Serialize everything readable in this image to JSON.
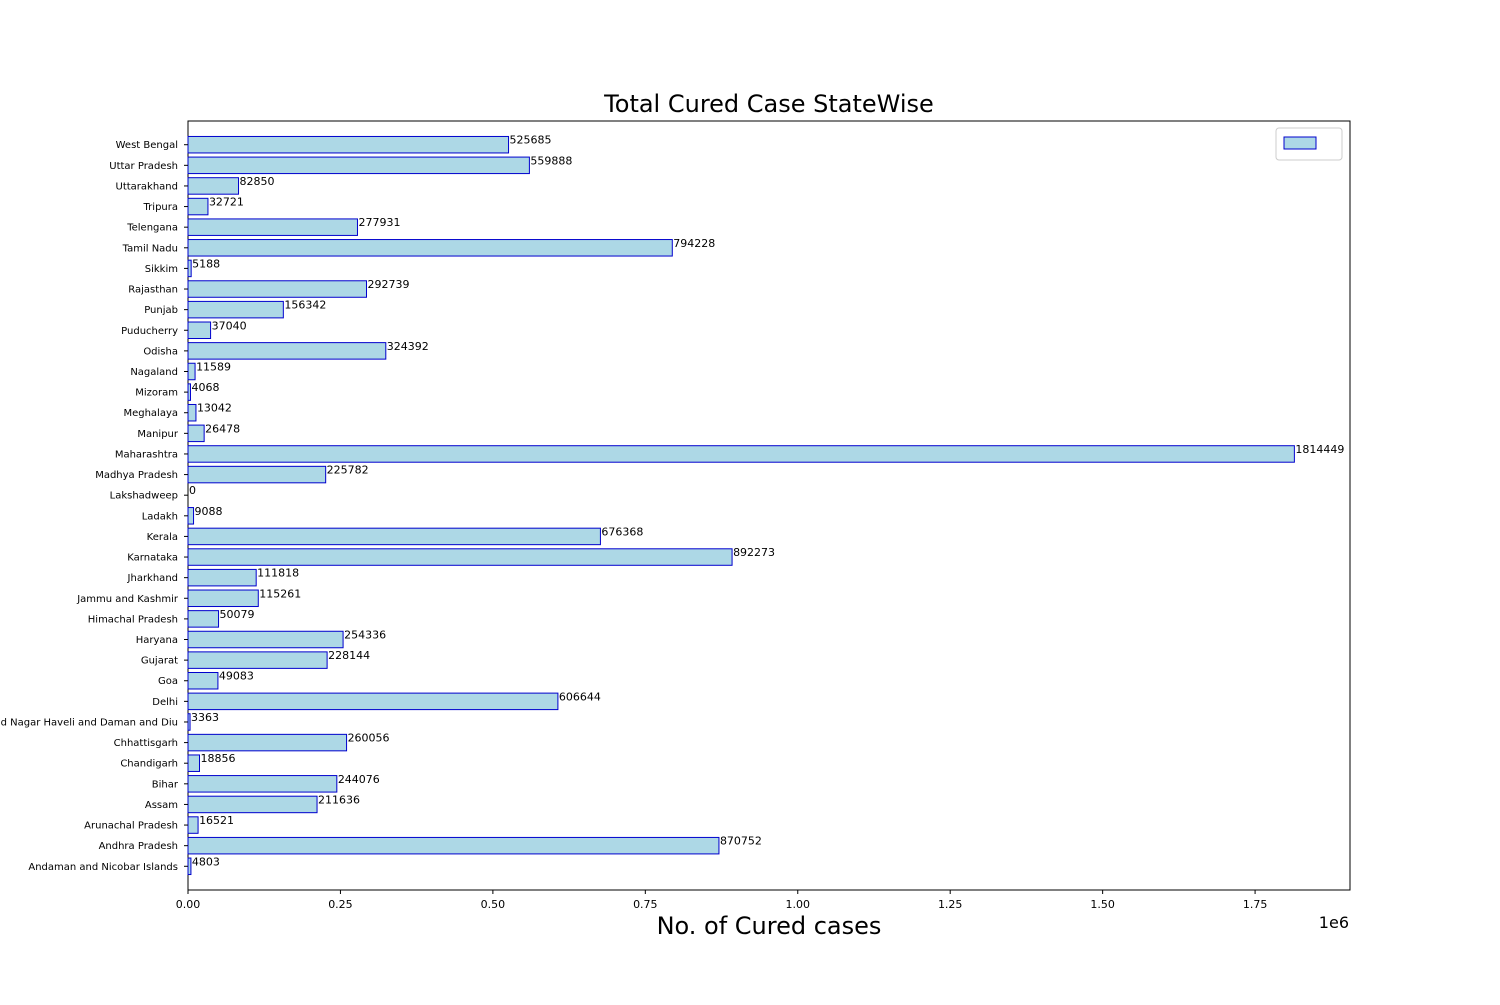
{
  "chart_data": {
    "type": "bar",
    "orientation": "horizontal",
    "title": "Total Cured Case StateWise",
    "xlabel": "No. of Cured cases",
    "ylabel": "",
    "x_offset_label": "1e6",
    "xlim": [
      0,
      1905671
    ],
    "x_ticks": [
      0,
      250000,
      500000,
      750000,
      1000000,
      1250000,
      1500000,
      1750000
    ],
    "x_tick_labels": [
      "0.00",
      "0.25",
      "0.50",
      "0.75",
      "1.00",
      "1.25",
      "1.50",
      "1.75"
    ],
    "grid": false,
    "legend": {
      "position": "top-right",
      "entries": [
        ""
      ]
    },
    "colors": {
      "fill": "#add8e6",
      "edge": "#0000cd"
    },
    "categories": [
      "Andaman and Nicobar Islands",
      "Andhra Pradesh",
      "Arunachal Pradesh",
      "Assam",
      "Bihar",
      "Chandigarh",
      "Chhattisgarh",
      "Dadra and Nagar Haveli and Daman and Diu",
      "Delhi",
      "Goa",
      "Gujarat",
      "Haryana",
      "Himachal Pradesh",
      "Jammu and Kashmir",
      "Jharkhand",
      "Karnataka",
      "Kerala",
      "Ladakh",
      "Lakshadweep",
      "Madhya Pradesh",
      "Maharashtra",
      "Manipur",
      "Meghalaya",
      "Mizoram",
      "Nagaland",
      "Odisha",
      "Puducherry",
      "Punjab",
      "Rajasthan",
      "Sikkim",
      "Tamil Nadu",
      "Telengana",
      "Tripura",
      "Uttarakhand",
      "Uttar Pradesh",
      "West Bengal"
    ],
    "values": [
      4803,
      870752,
      16521,
      211636,
      244076,
      18856,
      260056,
      3363,
      606644,
      49083,
      228144,
      254336,
      50079,
      115261,
      111818,
      892273,
      676368,
      9088,
      0,
      225782,
      1814449,
      26478,
      13042,
      4068,
      11589,
      324392,
      37040,
      156342,
      292739,
      5188,
      794228,
      277931,
      32721,
      82850,
      559888,
      525685
    ],
    "data_labels": [
      "4803",
      "870752",
      "16521",
      "211636",
      "244076",
      "18856",
      "260056",
      "3363",
      "606644",
      "49083",
      "228144",
      "254336",
      "50079",
      "115261",
      "111818",
      "892273",
      "676368",
      "9088",
      "0",
      "225782",
      "1814449",
      "26478",
      "13042",
      "4068",
      "11589",
      "324392",
      "37040",
      "156342",
      "292739",
      "5188",
      "794228",
      "277931",
      "32721",
      "82850",
      "559888",
      "525685"
    ]
  }
}
